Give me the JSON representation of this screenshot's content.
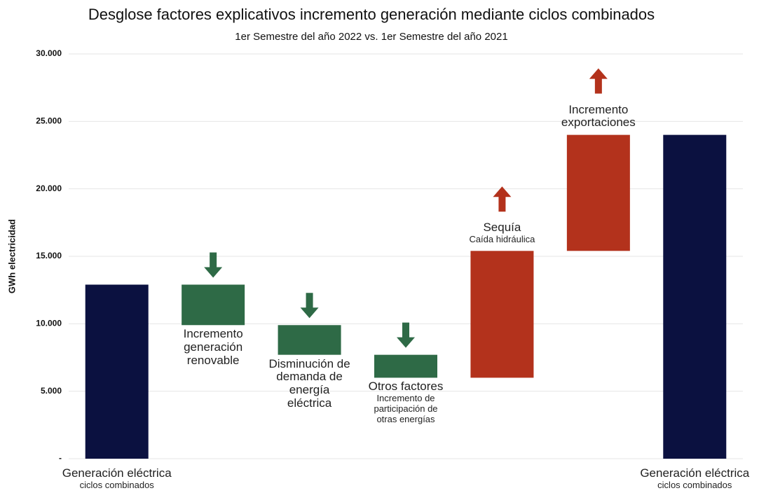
{
  "chart_data": {
    "type": "waterfall",
    "title": "Desglose factores explicativos incremento generación mediante ciclos combinados",
    "subtitle": "1er Semestre del año 2022 vs. 1er Semestre del año 2021",
    "y_label": "GWh electricidad",
    "categories": [
      "Generación eléctrica",
      "Incremento generación renovable",
      "Disminución de demanda de energía eléctrica",
      "Otros factores",
      "Sequía",
      "Incremento exportaciones",
      "Generación eléctrica"
    ],
    "sublabels": [
      "ciclos combinados",
      null,
      null,
      "Incremento de participación de otras energías",
      "Caída hidráulica",
      null,
      "ciclos combinados"
    ],
    "values": [
      12900,
      -3000,
      -2200,
      -1700,
      9400,
      8600,
      24000
    ],
    "totals": [
      true,
      false,
      false,
      false,
      false,
      false,
      true
    ],
    "colors": [
      "#0b1140",
      "#2e6a46",
      "#2e6a46",
      "#2e6a46",
      "#b3321c",
      "#b3321c",
      "#0b1140"
    ],
    "ylim": [
      0,
      30000
    ],
    "yticks": [
      {
        "value": 0,
        "label": "-"
      },
      {
        "value": 5000,
        "label": "5.000"
      },
      {
        "value": 10000,
        "label": "10.000"
      },
      {
        "value": 15000,
        "label": "15.000"
      },
      {
        "value": 20000,
        "label": "20.000"
      },
      {
        "value": 25000,
        "label": "25.000"
      },
      {
        "value": 30000,
        "label": "30.000"
      }
    ],
    "grid": true
  }
}
